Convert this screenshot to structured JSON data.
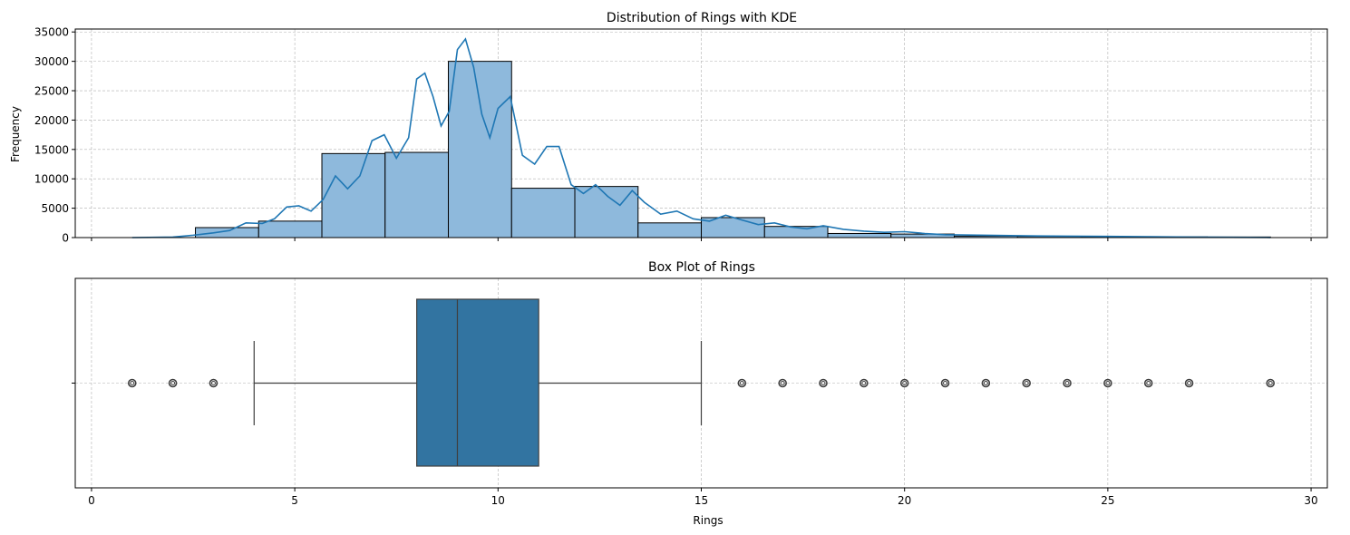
{
  "chart_data": [
    {
      "type": "histogram",
      "title": "Distribution of Rings with KDE",
      "xlabel": "",
      "ylabel": "Frequency",
      "xlim": [
        -0.4,
        30.4
      ],
      "ylim": [
        0,
        35500
      ],
      "xticks": [
        0,
        5,
        10,
        15,
        20,
        25,
        30
      ],
      "yticks": [
        0,
        5000,
        10000,
        15000,
        20000,
        25000,
        30000,
        35000
      ],
      "grid": true,
      "bin_start": 1,
      "bin_width": 1.5556,
      "bin_counts": [
        0,
        1700,
        2800,
        14300,
        14500,
        30000,
        8400,
        8700,
        2500,
        3400,
        1900,
        700,
        600,
        250,
        200,
        150,
        120,
        100
      ],
      "kde": {
        "x": [
          1,
          2,
          2.5,
          3,
          3.4,
          3.8,
          4.2,
          4.5,
          4.8,
          5.1,
          5.4,
          5.7,
          6.0,
          6.3,
          6.6,
          6.9,
          7.2,
          7.5,
          7.8,
          8.0,
          8.2,
          8.4,
          8.6,
          8.8,
          9.0,
          9.2,
          9.4,
          9.6,
          9.8,
          10.0,
          10.3,
          10.6,
          10.9,
          11.2,
          11.5,
          11.8,
          12.1,
          12.4,
          12.7,
          13.0,
          13.3,
          13.6,
          14.0,
          14.4,
          14.8,
          15.2,
          15.6,
          16.0,
          16.4,
          16.8,
          17.2,
          17.6,
          18.0,
          18.5,
          19.0,
          19.5,
          20.0,
          20.5,
          21.0,
          22.0,
          23.0,
          24.0,
          25.0,
          26.0,
          27.0,
          28.0,
          29.0
        ],
        "y": [
          0,
          100,
          400,
          800,
          1200,
          2500,
          2400,
          3200,
          5200,
          5400,
          4500,
          6500,
          10500,
          8300,
          10500,
          16500,
          17500,
          13500,
          17000,
          27000,
          28000,
          24000,
          19000,
          21500,
          32000,
          33800,
          29000,
          21000,
          17000,
          22000,
          24000,
          14000,
          12500,
          15500,
          15500,
          9000,
          7500,
          9000,
          7000,
          5500,
          8000,
          6000,
          4000,
          4500,
          3200,
          2800,
          3800,
          3000,
          2200,
          2500,
          1800,
          1500,
          2000,
          1400,
          1100,
          900,
          1000,
          700,
          500,
          400,
          300,
          250,
          200,
          150,
          100,
          50,
          20
        ]
      }
    },
    {
      "type": "box",
      "title": "Box Plot of Rings",
      "xlabel": "Rings",
      "xlim": [
        -0.4,
        30.4
      ],
      "xticks": [
        0,
        5,
        10,
        15,
        20,
        25,
        30
      ],
      "grid": true,
      "whisker_low": 4,
      "q1": 8,
      "median": 9,
      "q3": 11,
      "whisker_high": 15,
      "outliers": [
        1,
        2,
        3,
        16,
        17,
        18,
        19,
        20,
        21,
        22,
        23,
        24,
        25,
        26,
        27,
        29
      ]
    }
  ],
  "colors": {
    "hist_fill": "#8eb9dc",
    "kde_line": "#1f77b4",
    "box_fill": "#3274a1",
    "grid": "#b0b0b0"
  }
}
